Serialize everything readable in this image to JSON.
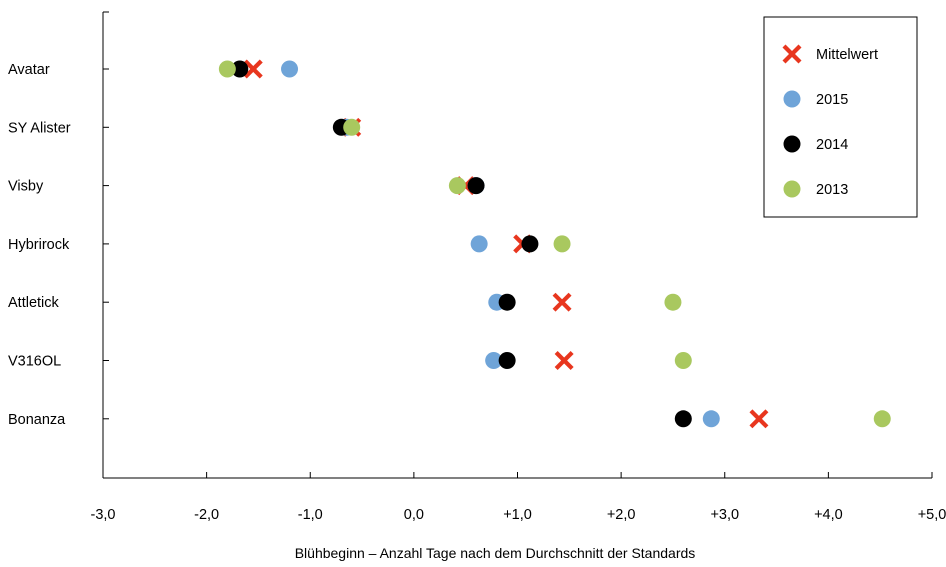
{
  "chart_data": {
    "type": "scatter",
    "title": "",
    "xlabel": "Blühbeginn – Anzahl Tage nach dem Durchschnitt der Standards",
    "ylabel": "",
    "xlim": [
      -3.0,
      5.0
    ],
    "xticks": [
      -3,
      -2,
      -1,
      0,
      1,
      2,
      3,
      4,
      5
    ],
    "xtick_labels": [
      "-3,0",
      "-2,0",
      "-1,0",
      "0,0",
      "+1,0",
      "+2,0",
      "+3,0",
      "+4,0",
      "+5,0"
    ],
    "grid": false,
    "legend_position": "top-right",
    "categories": [
      "Avatar",
      "SY Alister",
      "Visby",
      "Hybrirock",
      "Attletick",
      "V316OL",
      "Bonanza"
    ],
    "series": [
      {
        "name": "Mittelwert",
        "marker": "x",
        "color": "#e8361e",
        "values": [
          -1.55,
          -0.6,
          0.5,
          1.05,
          1.43,
          1.45,
          3.33
        ]
      },
      {
        "name": "2015",
        "marker": "circle",
        "color": "#6fa4d8",
        "values": [
          -1.2,
          -0.65,
          0.6,
          0.63,
          0.8,
          0.77,
          2.87
        ]
      },
      {
        "name": "2014",
        "marker": "circle",
        "color": "#000000",
        "values": [
          -1.68,
          -0.7,
          0.6,
          1.12,
          0.9,
          0.9,
          2.6
        ]
      },
      {
        "name": "2013",
        "marker": "circle",
        "color": "#a9c85f",
        "values": [
          -1.8,
          -0.6,
          0.42,
          1.43,
          2.5,
          2.6,
          4.52
        ]
      }
    ]
  }
}
